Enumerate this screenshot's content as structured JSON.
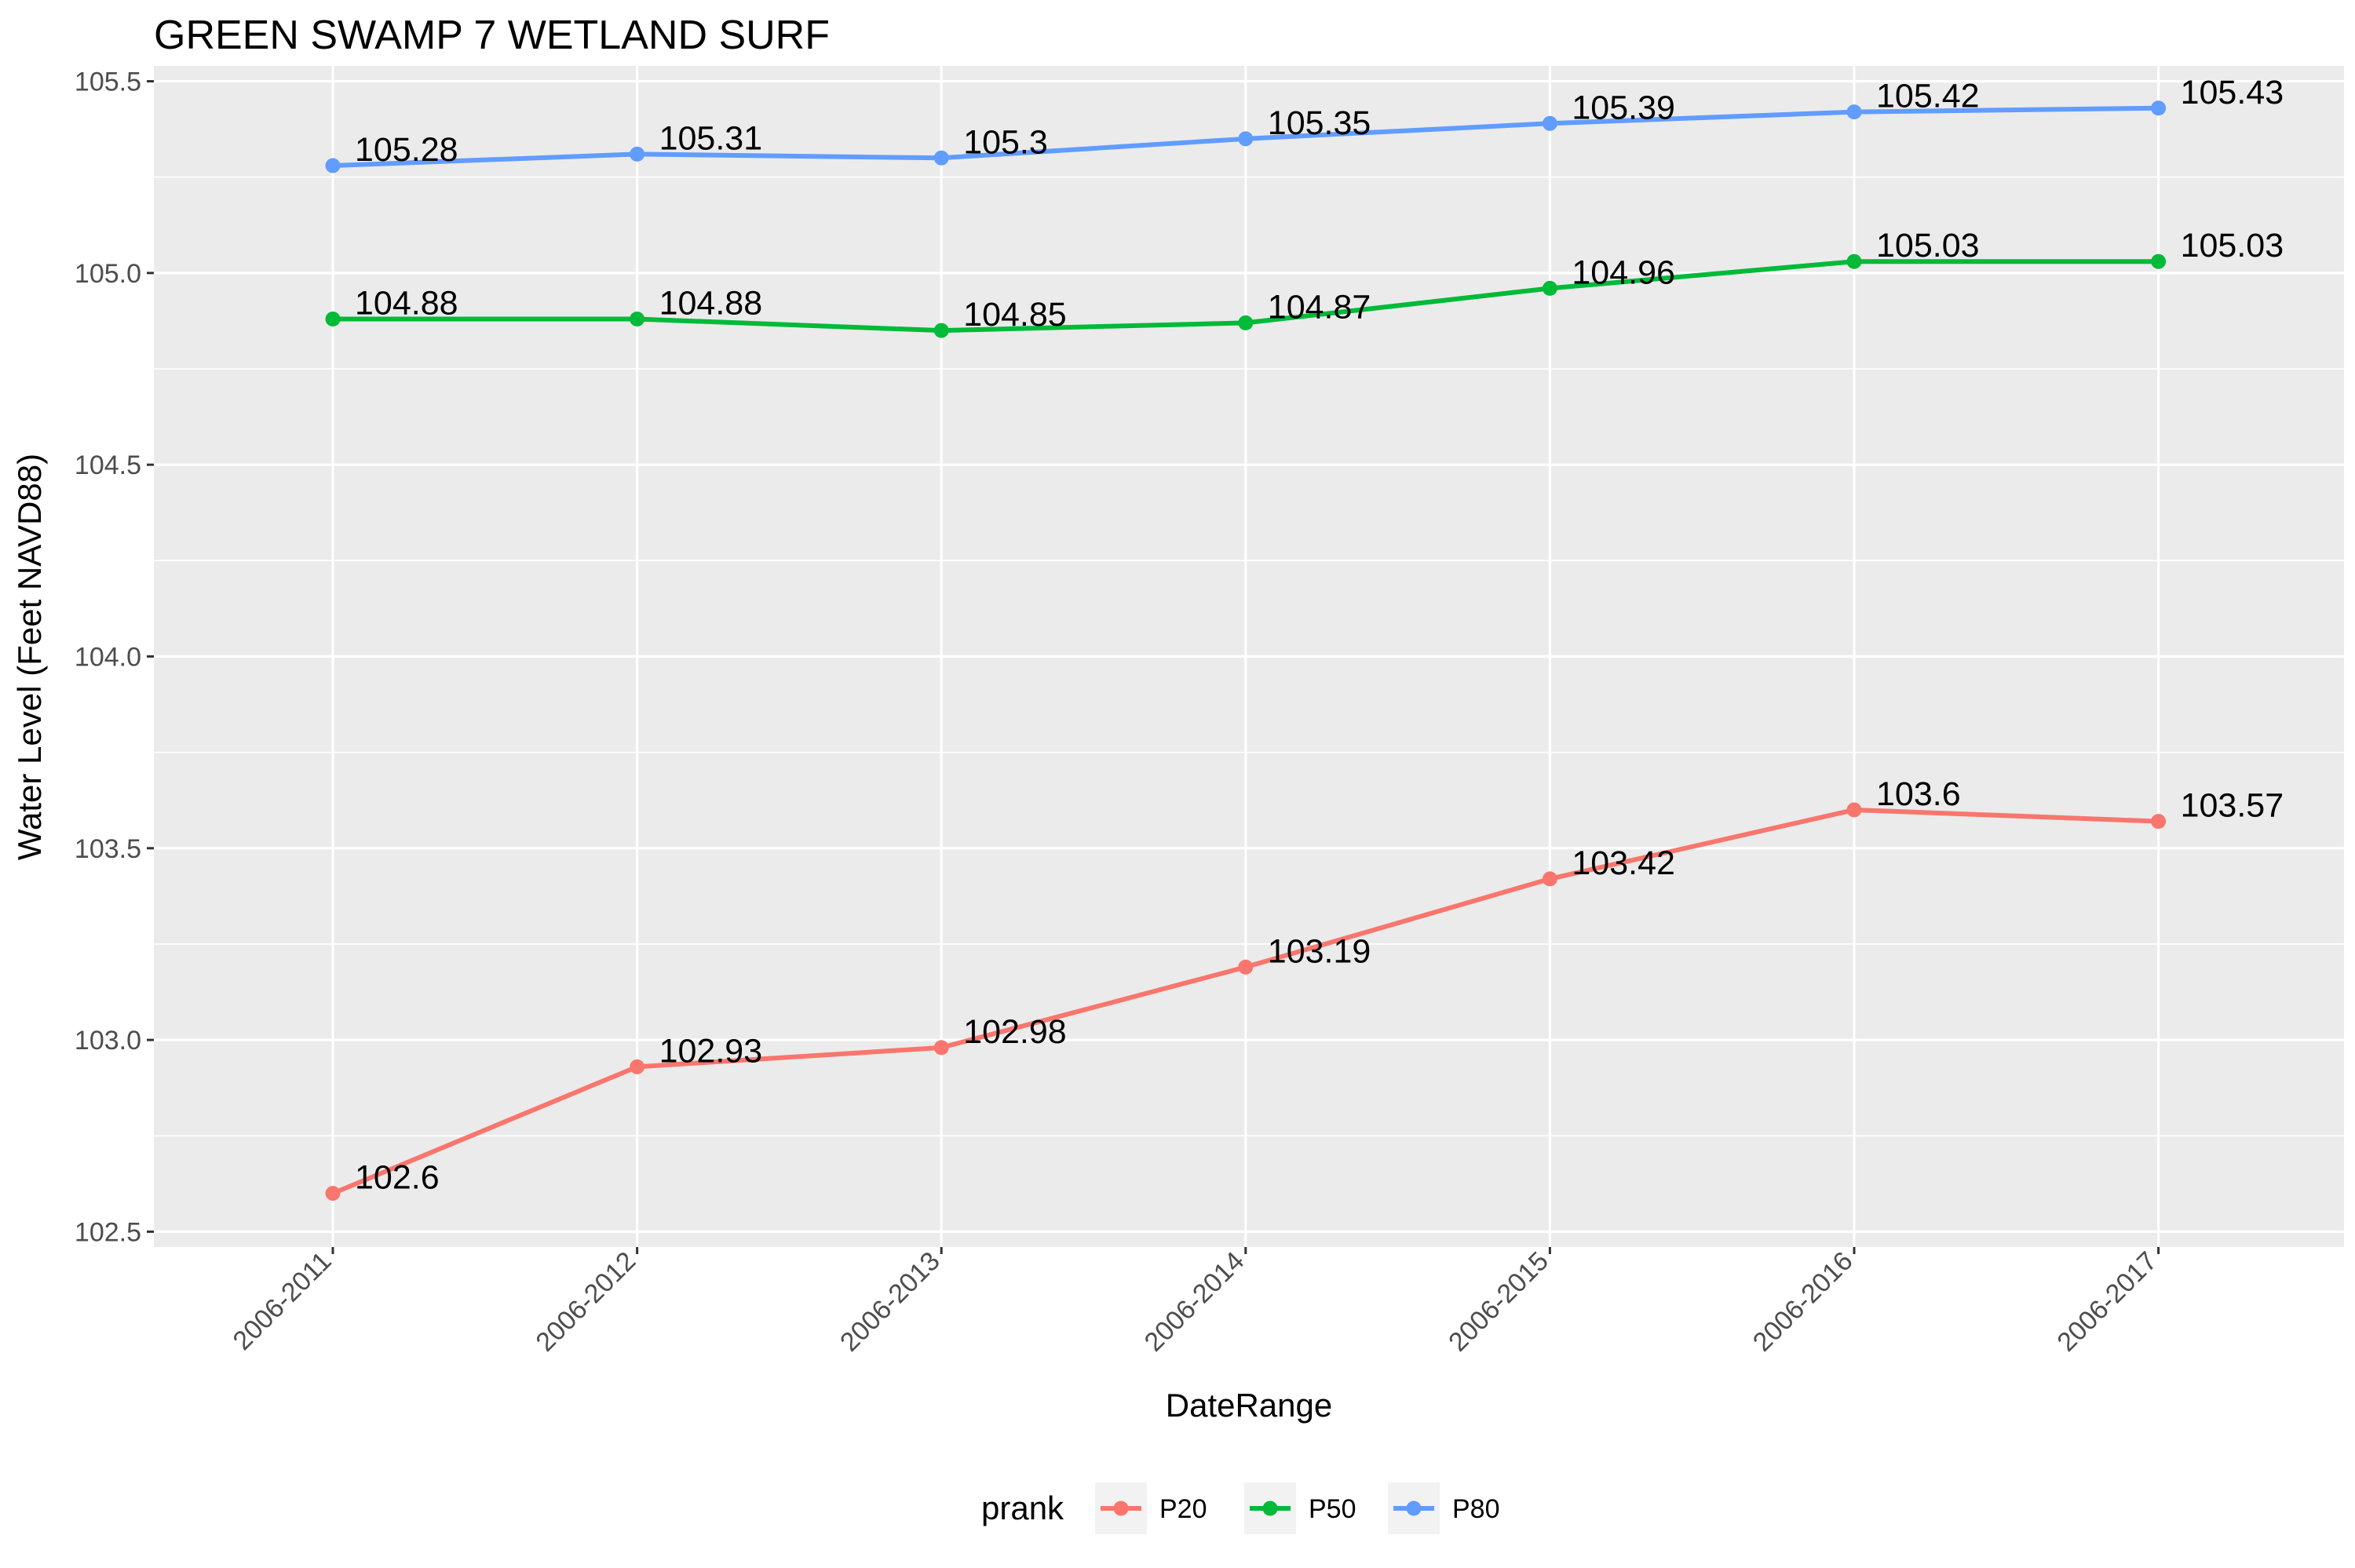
{
  "chart_data": {
    "type": "line",
    "title": "GREEN SWAMP 7 WETLAND SURF",
    "xlabel": "DateRange",
    "ylabel": "Water Level (Feet NAVD88)",
    "categories": [
      "2006-2011",
      "2006-2012",
      "2006-2013",
      "2006-2014",
      "2006-2015",
      "2006-2016",
      "2006-2017"
    ],
    "y_ticks": [
      102.5,
      103.0,
      103.5,
      104.0,
      104.5,
      105.0,
      105.5
    ],
    "y_tick_labels": [
      "102.5",
      "103.0",
      "103.5",
      "104.0",
      "104.5",
      "105.0",
      "105.5"
    ],
    "ylim": [
      102.46,
      105.54
    ],
    "grid": true,
    "legend": {
      "title": "prank",
      "position": "bottom"
    },
    "series": [
      {
        "name": "P20",
        "color": "#F8766D",
        "values": [
          102.6,
          102.93,
          102.98,
          103.19,
          103.42,
          103.6,
          103.57
        ],
        "labels": [
          "102.6",
          "102.93",
          "102.98",
          "103.19",
          "103.42",
          "103.6",
          "103.57"
        ]
      },
      {
        "name": "P50",
        "color": "#00BA38",
        "values": [
          104.88,
          104.88,
          104.85,
          104.87,
          104.96,
          105.03,
          105.03
        ],
        "labels": [
          "104.88",
          "104.88",
          "104.85",
          "104.87",
          "104.96",
          "105.03",
          "105.03"
        ]
      },
      {
        "name": "P80",
        "color": "#619CFF",
        "values": [
          105.28,
          105.31,
          105.3,
          105.35,
          105.39,
          105.42,
          105.43
        ],
        "labels": [
          "105.28",
          "105.31",
          "105.3",
          "105.35",
          "105.39",
          "105.42",
          "105.43"
        ]
      }
    ]
  }
}
